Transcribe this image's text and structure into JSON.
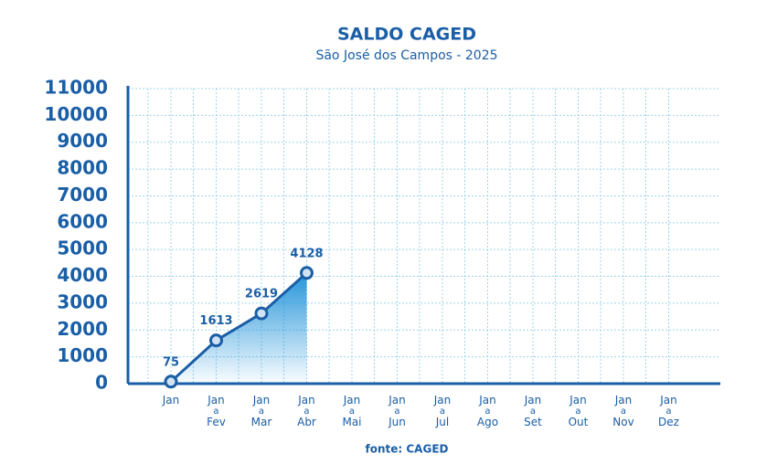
{
  "chart_data": {
    "type": "line",
    "title": "SALDO CAGED",
    "subtitle": "São José dos Campos - 2025",
    "source": "fonte: CAGED",
    "categories": [
      [
        "Jan"
      ],
      [
        "Jan",
        "a",
        "Fev"
      ],
      [
        "Jan",
        "a",
        "Mar"
      ],
      [
        "Jan",
        "a",
        "Abr"
      ],
      [
        "Jan",
        "a",
        "Mai"
      ],
      [
        "Jan",
        "a",
        "Jun"
      ],
      [
        "Jan",
        "a",
        "Jul"
      ],
      [
        "Jan",
        "a",
        "Ago"
      ],
      [
        "Jan",
        "a",
        "Set"
      ],
      [
        "Jan",
        "a",
        "Out"
      ],
      [
        "Jan",
        "a",
        "Nov"
      ],
      [
        "Jan",
        "a",
        "Dez"
      ]
    ],
    "values": [
      75,
      1613,
      2619,
      4128,
      null,
      null,
      null,
      null,
      null,
      null,
      null,
      null
    ],
    "color": "#1a5ea6",
    "ylim": [
      0,
      11000
    ],
    "yticks": [
      0,
      1000,
      2000,
      3000,
      4000,
      5000,
      6000,
      7000,
      8000,
      9000,
      10000,
      11000
    ],
    "grid": true
  }
}
